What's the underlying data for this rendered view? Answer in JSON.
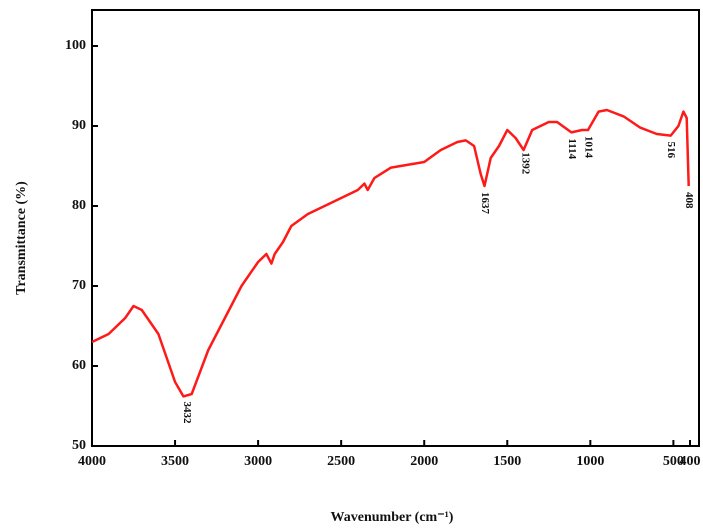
{
  "chart_data": {
    "type": "line",
    "x_label": "Wavenumber (cm⁻¹)",
    "y_label": "Transmittance (%)",
    "xlim": [
      4000,
      400
    ],
    "ylim": [
      50,
      104.5
    ],
    "xticks": [
      4000,
      3500,
      3000,
      2500,
      2000,
      1500,
      1000,
      500,
      400
    ],
    "yticks": [
      50,
      60,
      70,
      80,
      90,
      100
    ],
    "x": [
      4000,
      3900,
      3800,
      3750,
      3700,
      3600,
      3500,
      3450,
      3400,
      3300,
      3200,
      3100,
      3000,
      2950,
      2920,
      2900,
      2850,
      2800,
      2700,
      2600,
      2500,
      2400,
      2360,
      2340,
      2300,
      2200,
      2000,
      1900,
      1800,
      1750,
      1700,
      1660,
      1637,
      1600,
      1550,
      1500,
      1450,
      1402,
      1350,
      1250,
      1200,
      1114,
      1050,
      1014,
      950,
      900,
      800,
      700,
      600,
      516,
      470,
      440,
      420,
      408
    ],
    "series": [
      {
        "name": "spectrum",
        "color": "#ff1a1a",
        "values": [
          63,
          64,
          66,
          67.5,
          67,
          64,
          58,
          56.2,
          56.5,
          62,
          66,
          70,
          73,
          74,
          72.8,
          74,
          75.5,
          77.5,
          79,
          80,
          81,
          82,
          82.8,
          82,
          83.5,
          84.8,
          85.5,
          87,
          88,
          88.2,
          87.5,
          84,
          82.5,
          86,
          87.5,
          89.5,
          88.5,
          87,
          89.5,
          90.5,
          90.5,
          89.2,
          89.5,
          89.5,
          91.8,
          92,
          91.2,
          89.8,
          89,
          88.8,
          90,
          91.8,
          91,
          82.5
        ]
      }
    ],
    "annotations": [
      {
        "text": "3432",
        "x": 3432
      },
      {
        "text": "1637",
        "x": 1637
      },
      {
        "text": "1392",
        "x": 1392
      },
      {
        "text": "1114",
        "x": 1114
      },
      {
        "text": "1014",
        "x": 1014
      },
      {
        "text": "516",
        "x": 516
      },
      {
        "text": "408",
        "x": 408
      }
    ]
  }
}
